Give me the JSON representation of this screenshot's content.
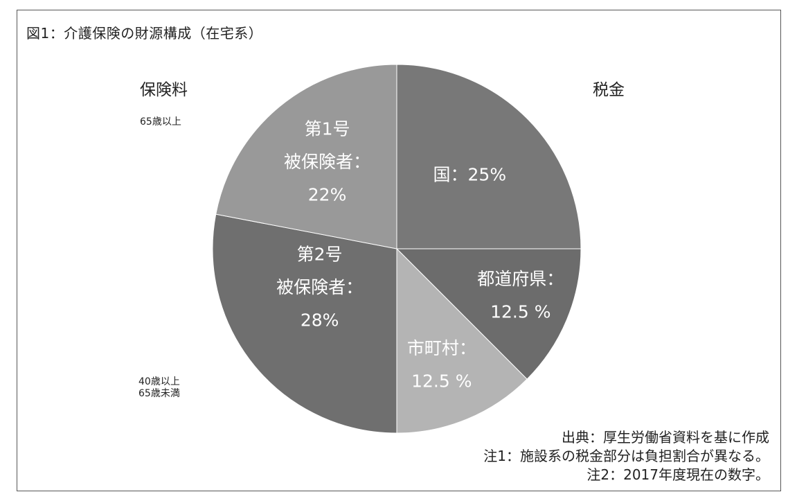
{
  "title": "図1：介護保険の財源構成（在宅系）",
  "group_labels": {
    "insurance": "保険料",
    "tax": "税金"
  },
  "age_notes": {
    "first": "65歳以上",
    "second_line1": "40歳以上",
    "second_line2": "65歳未満"
  },
  "chart_data": {
    "type": "pie",
    "title": "図1：介護保険の財源構成（在宅系）",
    "start_angle_deg": 0,
    "direction": "clockwise",
    "slices": [
      {
        "key": "kuni",
        "label_lines": [
          "国：25%"
        ],
        "value": 25,
        "color": "#787878",
        "label_r": 0.56,
        "label_angle": 45,
        "label_size": 25
      },
      {
        "key": "todofuken",
        "label_lines": [
          "都道府県：",
          "12.5 %"
        ],
        "value": 12.5,
        "color": "#6c6c6c",
        "label_r": 0.72,
        "label_angle": 111,
        "label_size": 25
      },
      {
        "key": "shichoson",
        "label_lines": [
          "市町村：",
          "12.5 %"
        ],
        "value": 12.5,
        "color": "#b4b4b4",
        "label_r": 0.68,
        "label_angle": 159,
        "label_size": 25
      },
      {
        "key": "dai2",
        "label_lines": [
          "第2号",
          "被保険者：",
          "28%"
        ],
        "value": 28,
        "color": "#6f6f6f",
        "label_r": 0.47,
        "label_angle": 243,
        "label_size": 25
      },
      {
        "key": "dai1",
        "label_lines": [
          "第1号",
          "被保険者：",
          "22%"
        ],
        "value": 22,
        "color": "#999999",
        "label_r": 0.6,
        "label_angle": 321,
        "label_size": 25
      }
    ]
  },
  "notes": [
    "出典：厚生労働省資料を基に作成",
    "注1：施設系の税金部分は負担割合が異なる。",
    "注2：2017年度現在の数字。"
  ]
}
